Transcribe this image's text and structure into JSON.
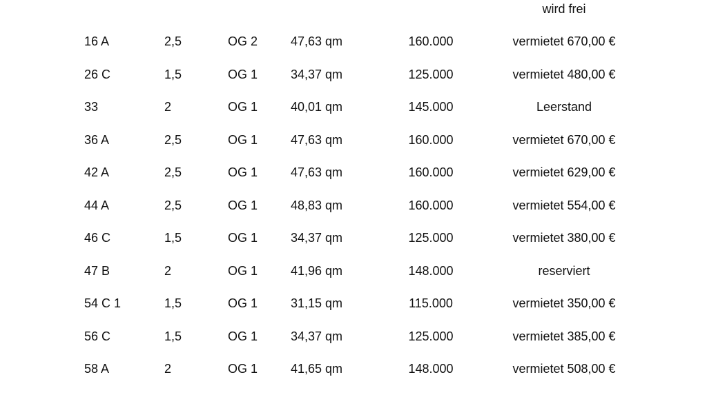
{
  "table": {
    "header_note": "wird frei",
    "rows": [
      [
        "16 A",
        "2,5",
        "OG 2",
        "47,63 qm",
        "160.000",
        "vermietet 670,00 €"
      ],
      [
        "26 C",
        "1,5",
        "OG 1",
        "34,37 qm",
        "125.000",
        "vermietet 480,00 €"
      ],
      [
        "33",
        "2",
        "OG 1",
        "40,01 qm",
        "145.000",
        "Leerstand"
      ],
      [
        "36 A",
        "2,5",
        "OG 1",
        "47,63 qm",
        "160.000",
        "vermietet 670,00 €"
      ],
      [
        "42 A",
        "2,5",
        "OG 1",
        "47,63 qm",
        "160.000",
        "vermietet 629,00 €"
      ],
      [
        "44 A",
        "2,5",
        "OG 1",
        "48,83 qm",
        "160.000",
        "vermietet 554,00 €"
      ],
      [
        "46 C",
        "1,5",
        "OG 1",
        "34,37 qm",
        "125.000",
        "vermietet 380,00 €"
      ],
      [
        "47 B",
        "2",
        "OG 1",
        "41,96 qm",
        "148.000",
        "reserviert"
      ],
      [
        "54 C 1",
        "1,5",
        "OG 1",
        "31,15 qm",
        "115.000",
        "vermietet 350,00 €"
      ],
      [
        "56 C",
        "1,5",
        "OG 1",
        "34,37 qm",
        "125.000",
        "vermietet 385,00 €"
      ],
      [
        "58 A",
        "2",
        "OG 1",
        "41,65 qm",
        "148.000",
        "vermietet 508,00 €"
      ]
    ]
  }
}
